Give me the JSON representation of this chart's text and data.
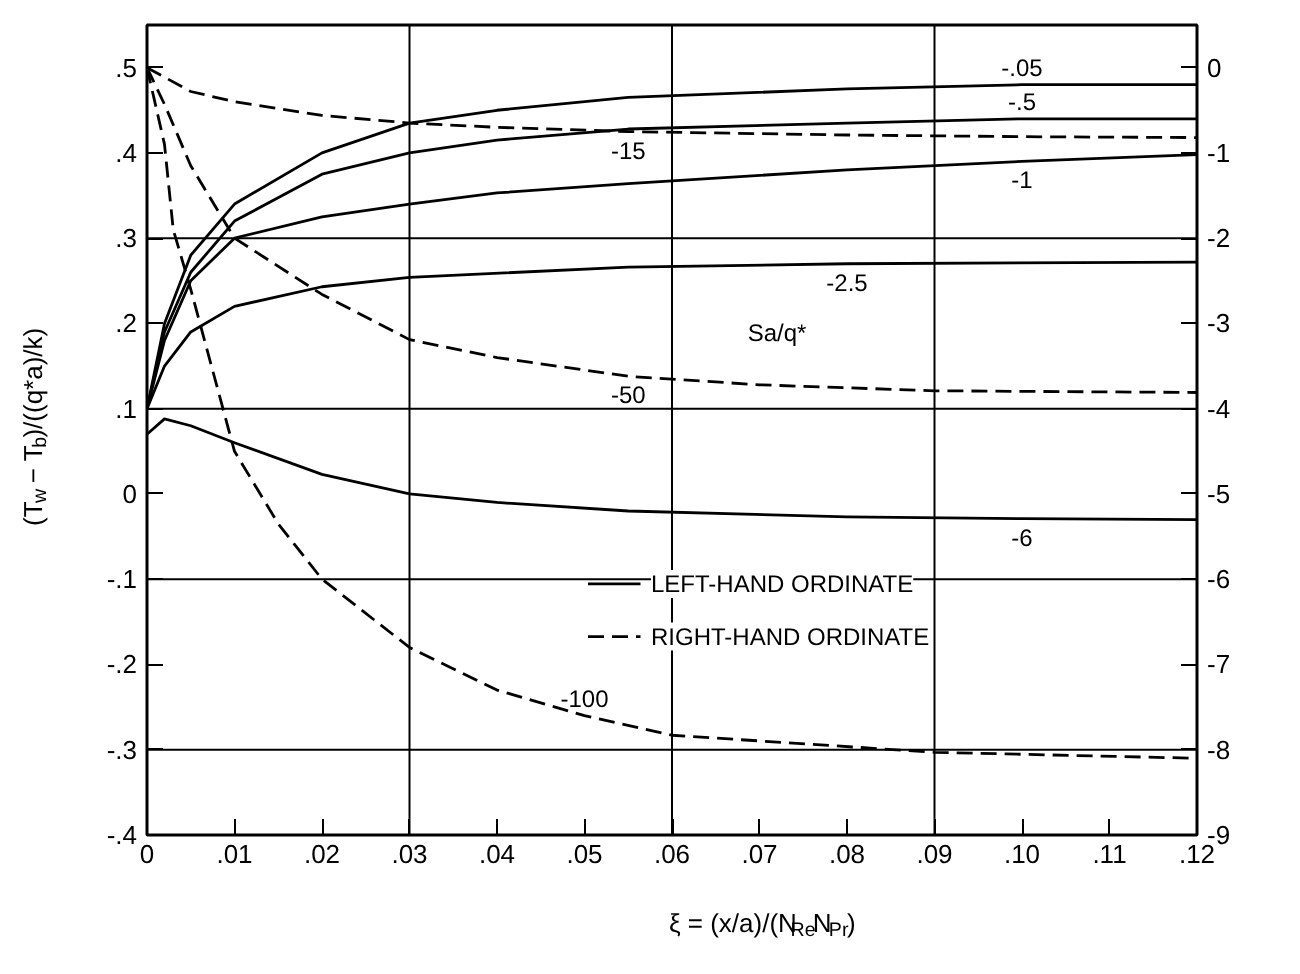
{
  "chart_data": {
    "type": "line",
    "xlabel": "ξ = (x/a)/(N$_{Re}$N$_{Pr}$)",
    "ylabel": "(T$_{w}$ − T$_{b}$)/((q*a)/k)",
    "xlim": [
      0,
      0.12
    ],
    "ylim": [
      -0.4,
      0.55
    ],
    "y2lim": [
      -9,
      0.5
    ],
    "xticks": [
      {
        "value": 0,
        "label": "0"
      },
      {
        "value": 0.01,
        "label": ".01"
      },
      {
        "value": 0.02,
        "label": ".02"
      },
      {
        "value": 0.03,
        "label": ".03"
      },
      {
        "value": 0.04,
        "label": ".04"
      },
      {
        "value": 0.05,
        "label": ".05"
      },
      {
        "value": 0.06,
        "label": ".06"
      },
      {
        "value": 0.07,
        "label": ".07"
      },
      {
        "value": 0.08,
        "label": ".08"
      },
      {
        "value": 0.09,
        "label": ".09"
      },
      {
        "value": 0.1,
        "label": ".10"
      },
      {
        "value": 0.11,
        "label": ".11"
      },
      {
        "value": 0.12,
        "label": ".12"
      }
    ],
    "yticks": [
      {
        "value": -0.4,
        "label": "-.4"
      },
      {
        "value": -0.3,
        "label": "-.3"
      },
      {
        "value": -0.2,
        "label": "-.2"
      },
      {
        "value": -0.1,
        "label": "-.1"
      },
      0,
      {
        "value": 0.1,
        "label": ".1"
      },
      {
        "value": 0.2,
        "label": ".2"
      },
      {
        "value": 0.3,
        "label": ".3"
      },
      {
        "value": 0.4,
        "label": ".4"
      },
      {
        "value": 0.5,
        "label": ".5"
      }
    ],
    "y2ticks": [
      -9,
      -8,
      -7,
      -6,
      -5,
      -4,
      -3,
      -2,
      -1,
      0
    ],
    "grid": false,
    "ref_lines": [
      {
        "axis": "x",
        "value": 0.03
      },
      {
        "axis": "x",
        "value": 0.06
      },
      {
        "axis": "x",
        "value": 0.09
      },
      {
        "axis": "y",
        "value": 0.3
      },
      {
        "axis": "y",
        "value": 0.1
      },
      {
        "axis": "y",
        "value": -0.1
      },
      {
        "axis": "y",
        "value": -0.3
      }
    ],
    "series": [
      {
        "name": "-.05",
        "color": "#000000",
        "line_style": "solid",
        "x": [
          0,
          0.002,
          0.005,
          0.01,
          0.02,
          0.03,
          0.04,
          0.055,
          0.08,
          0.1,
          0.12
        ],
        "values": [
          0.1,
          0.2,
          0.28,
          0.34,
          0.4,
          0.435,
          0.45,
          0.465,
          0.475,
          0.48,
          0.48
        ]
      },
      {
        "name": "-.5",
        "color": "#000000",
        "line_style": "solid",
        "x": [
          0,
          0.002,
          0.005,
          0.01,
          0.02,
          0.03,
          0.04,
          0.055,
          0.08,
          0.1,
          0.12
        ],
        "values": [
          0.1,
          0.19,
          0.26,
          0.32,
          0.375,
          0.4,
          0.415,
          0.428,
          0.435,
          0.44,
          0.44
        ]
      },
      {
        "name": "-1",
        "color": "#000000",
        "line_style": "solid",
        "x": [
          0,
          0.002,
          0.005,
          0.01,
          0.02,
          0.03,
          0.04,
          0.055,
          0.08,
          0.1,
          0.12
        ],
        "values": [
          0.1,
          0.18,
          0.25,
          0.3,
          0.325,
          0.34,
          0.353,
          0.364,
          0.38,
          0.39,
          0.398
        ]
      },
      {
        "name": "-2.5",
        "color": "#000000",
        "line_style": "solid",
        "x": [
          0,
          0.002,
          0.005,
          0.01,
          0.02,
          0.03,
          0.055,
          0.08,
          0.12
        ],
        "values": [
          0.1,
          0.15,
          0.19,
          0.22,
          0.243,
          0.254,
          0.266,
          0.27,
          0.272
        ]
      },
      {
        "name": "-6",
        "color": "#000000",
        "line_style": "solid",
        "x": [
          0,
          0.002,
          0.005,
          0.01,
          0.02,
          0.03,
          0.04,
          0.055,
          0.08,
          0.1,
          0.12
        ],
        "values": [
          0.07,
          0.088,
          0.08,
          0.06,
          0.023,
          0.0,
          -0.01,
          -0.02,
          -0.027,
          -0.029,
          -0.03
        ]
      },
      {
        "name": "-15",
        "color": "#000000",
        "line_style": "dashed",
        "axis": "y2",
        "x": [
          0,
          0.005,
          0.01,
          0.02,
          0.03,
          0.04,
          0.055,
          0.08,
          0.1,
          0.12
        ],
        "values": [
          0,
          -0.28,
          -0.4,
          -0.56,
          -0.65,
          -0.7,
          -0.75,
          -0.79,
          -0.81,
          -0.82
        ]
      },
      {
        "name": "-50",
        "color": "#000000",
        "line_style": "dashed",
        "axis": "y2",
        "x": [
          0,
          0.002,
          0.005,
          0.01,
          0.02,
          0.03,
          0.04,
          0.055,
          0.07,
          0.09,
          0.12
        ],
        "values": [
          0,
          -0.43,
          -1.15,
          -2.0,
          -2.66,
          -3.19,
          -3.4,
          -3.62,
          -3.72,
          -3.79,
          -3.81
        ]
      },
      {
        "name": "-100",
        "color": "#000000",
        "line_style": "dashed",
        "axis": "y2",
        "x": [
          0,
          0.002,
          0.003,
          0.005,
          0.01,
          0.015,
          0.02,
          0.03,
          0.04,
          0.05,
          0.06,
          0.09,
          0.12
        ],
        "values": [
          0,
          -0.9,
          -1.9,
          -2.6,
          -4.5,
          -5.35,
          -6.0,
          -6.8,
          -7.3,
          -7.6,
          -7.83,
          -8.03,
          -8.1
        ]
      }
    ],
    "annotations": [
      "Sa/q*",
      "LEFT-HAND ORDINATE",
      "RIGHT-HAND ORDINATE"
    ]
  }
}
